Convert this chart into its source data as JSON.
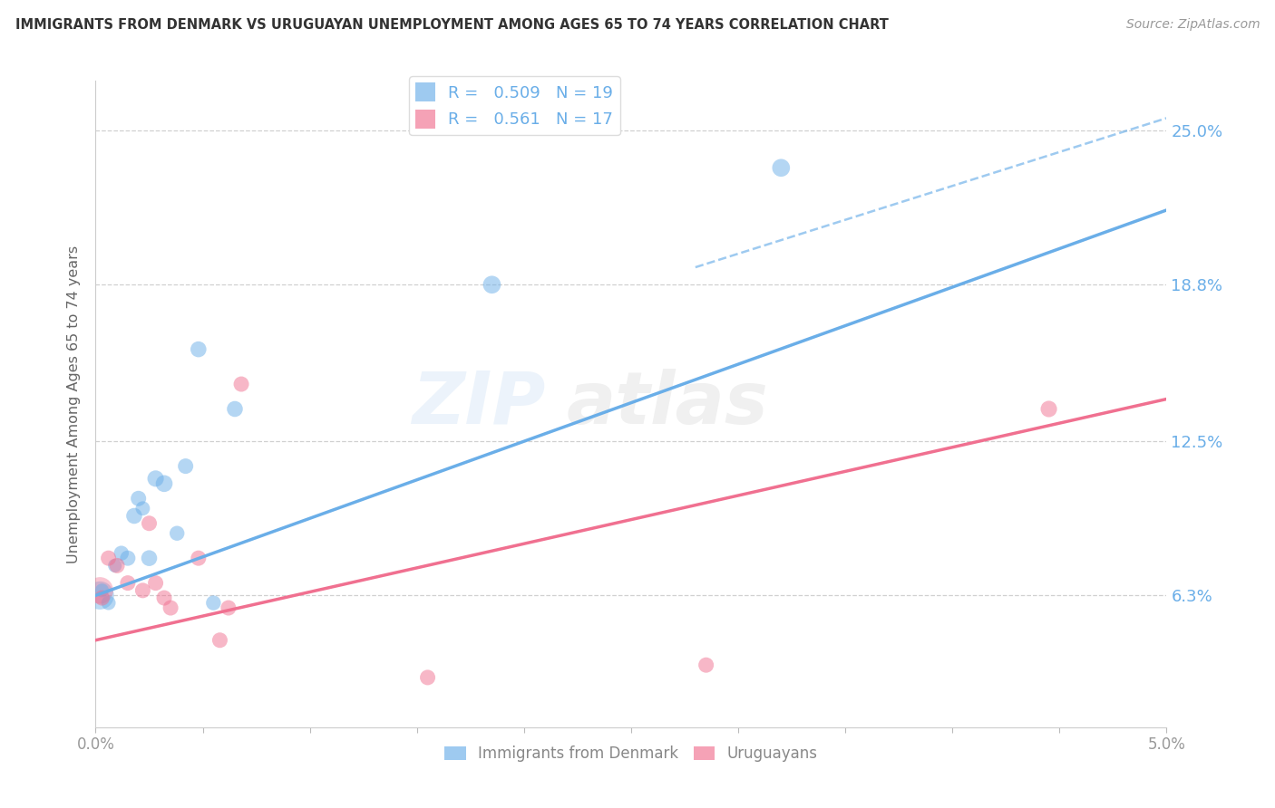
{
  "title": "IMMIGRANTS FROM DENMARK VS URUGUAYAN UNEMPLOYMENT AMONG AGES 65 TO 74 YEARS CORRELATION CHART",
  "source": "Source: ZipAtlas.com",
  "ylabel": "Unemployment Among Ages 65 to 74 years",
  "ytick_values": [
    6.3,
    12.5,
    18.8,
    25.0
  ],
  "ytick_labels": [
    "6.3%",
    "12.5%",
    "18.8%",
    "25.0%"
  ],
  "xmin": 0.0,
  "xmax": 5.0,
  "ymin": 1.0,
  "ymax": 27.0,
  "legend_blue_r": "0.509",
  "legend_blue_n": "19",
  "legend_pink_r": "0.561",
  "legend_pink_n": "17",
  "blue_color": "#6aaee8",
  "pink_color": "#f07090",
  "watermark": "ZIPatlas",
  "blue_scatter_x": [
    0.03,
    0.06,
    0.09,
    0.12,
    0.15,
    0.18,
    0.2,
    0.22,
    0.25,
    0.28,
    0.32,
    0.38,
    0.42,
    0.48,
    0.55,
    0.65,
    1.85,
    3.2
  ],
  "blue_scatter_y": [
    6.5,
    6.0,
    7.5,
    8.0,
    7.8,
    9.5,
    10.2,
    9.8,
    7.8,
    11.0,
    10.8,
    8.8,
    11.5,
    16.2,
    6.0,
    13.8,
    18.8,
    23.5
  ],
  "blue_scatter_size": [
    120,
    130,
    120,
    140,
    150,
    160,
    150,
    130,
    160,
    170,
    180,
    140,
    150,
    160,
    140,
    160,
    200,
    200
  ],
  "blue_big_x": [
    0.02
  ],
  "blue_big_y": [
    6.3
  ],
  "blue_big_size": [
    500
  ],
  "pink_scatter_x": [
    0.03,
    0.06,
    0.1,
    0.15,
    0.22,
    0.25,
    0.28,
    0.32,
    0.35,
    0.48,
    0.58,
    0.62,
    0.68,
    1.55,
    2.85,
    4.45
  ],
  "pink_scatter_y": [
    6.2,
    7.8,
    7.5,
    6.8,
    6.5,
    9.2,
    6.8,
    6.2,
    5.8,
    7.8,
    4.5,
    5.8,
    14.8,
    3.0,
    3.5,
    13.8
  ],
  "pink_scatter_size": [
    150,
    150,
    150,
    150,
    150,
    150,
    150,
    150,
    150,
    150,
    150,
    150,
    150,
    150,
    150,
    170
  ],
  "pink_big_x": [
    0.02
  ],
  "pink_big_y": [
    6.5
  ],
  "pink_big_size": [
    450
  ],
  "blue_line_x0": 0.0,
  "blue_line_x1": 5.0,
  "blue_line_y0": 6.3,
  "blue_line_y1": 21.8,
  "blue_dash_x0": 2.8,
  "blue_dash_x1": 5.0,
  "blue_dash_y0": 19.5,
  "blue_dash_y1": 25.5,
  "pink_line_x0": 0.0,
  "pink_line_x1": 5.0,
  "pink_line_y0": 4.5,
  "pink_line_y1": 14.2
}
